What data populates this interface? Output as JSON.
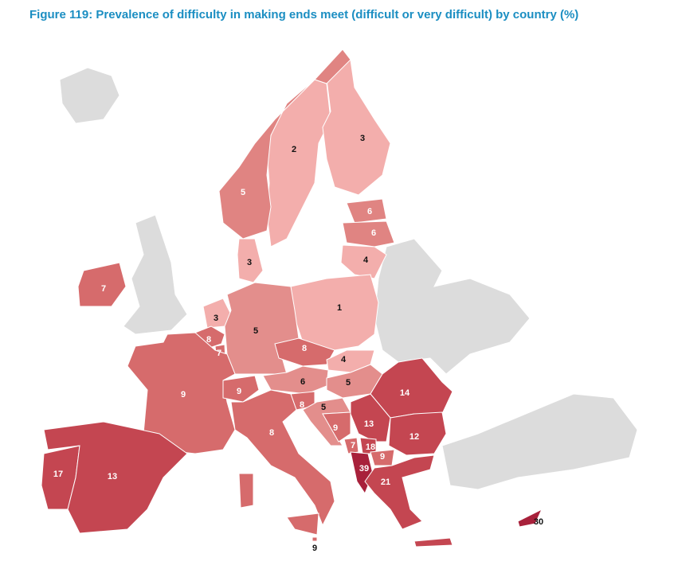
{
  "title": "Figure 119: Prevalence of difficulty in making ends meet (difficult or very difficult) by country (%)",
  "regions": [
    {
      "value": 2,
      "color": "#f3aeac"
    },
    {
      "value": 3,
      "color": "#f3aeac"
    },
    {
      "value": 5,
      "color": "#e08482"
    },
    {
      "value": 6,
      "color": "#e08482"
    },
    {
      "value": 6,
      "color": "#e08482"
    },
    {
      "value": 4,
      "color": "#f3aeac"
    },
    {
      "value": 3,
      "color": "#f3aeac"
    },
    {
      "value": 7,
      "color": "#d66b6c"
    },
    {
      "value": 3,
      "color": "#f3aeac"
    },
    {
      "value": 1,
      "color": "#f3aeac"
    },
    {
      "value": 5,
      "color": "#e38e8c"
    },
    {
      "value": 8,
      "color": "#d66b6c"
    },
    {
      "value": 7,
      "color": "#d66b6c"
    },
    {
      "value": 8,
      "color": "#d66b6c"
    },
    {
      "value": 4,
      "color": "#f3aeac"
    },
    {
      "value": 9,
      "color": "#d66b6c"
    },
    {
      "value": 9,
      "color": "#d66b6c"
    },
    {
      "value": 6,
      "color": "#e38e8c"
    },
    {
      "value": 5,
      "color": "#e38e8c"
    },
    {
      "value": 8,
      "color": "#d66b6c"
    },
    {
      "value": 5,
      "color": "#e38e8c"
    },
    {
      "value": 14,
      "color": "#c44651"
    },
    {
      "value": 9,
      "color": "#d66b6c"
    },
    {
      "value": 13,
      "color": "#c44651"
    },
    {
      "value": 12,
      "color": "#c44651"
    },
    {
      "value": 8,
      "color": "#d66b6c"
    },
    {
      "value": 7,
      "color": "#d66b6c"
    },
    {
      "value": 18,
      "color": "#c44651"
    },
    {
      "value": 9,
      "color": "#d66b6c"
    },
    {
      "value": 39,
      "color": "#a8213b"
    },
    {
      "value": 21,
      "color": "#c44651"
    },
    {
      "value": 17,
      "color": "#c44651"
    },
    {
      "value": 13,
      "color": "#c44651"
    },
    {
      "value": 30,
      "color": "#a8213b"
    },
    {
      "value": 9,
      "color": "#d66b6c"
    }
  ]
}
